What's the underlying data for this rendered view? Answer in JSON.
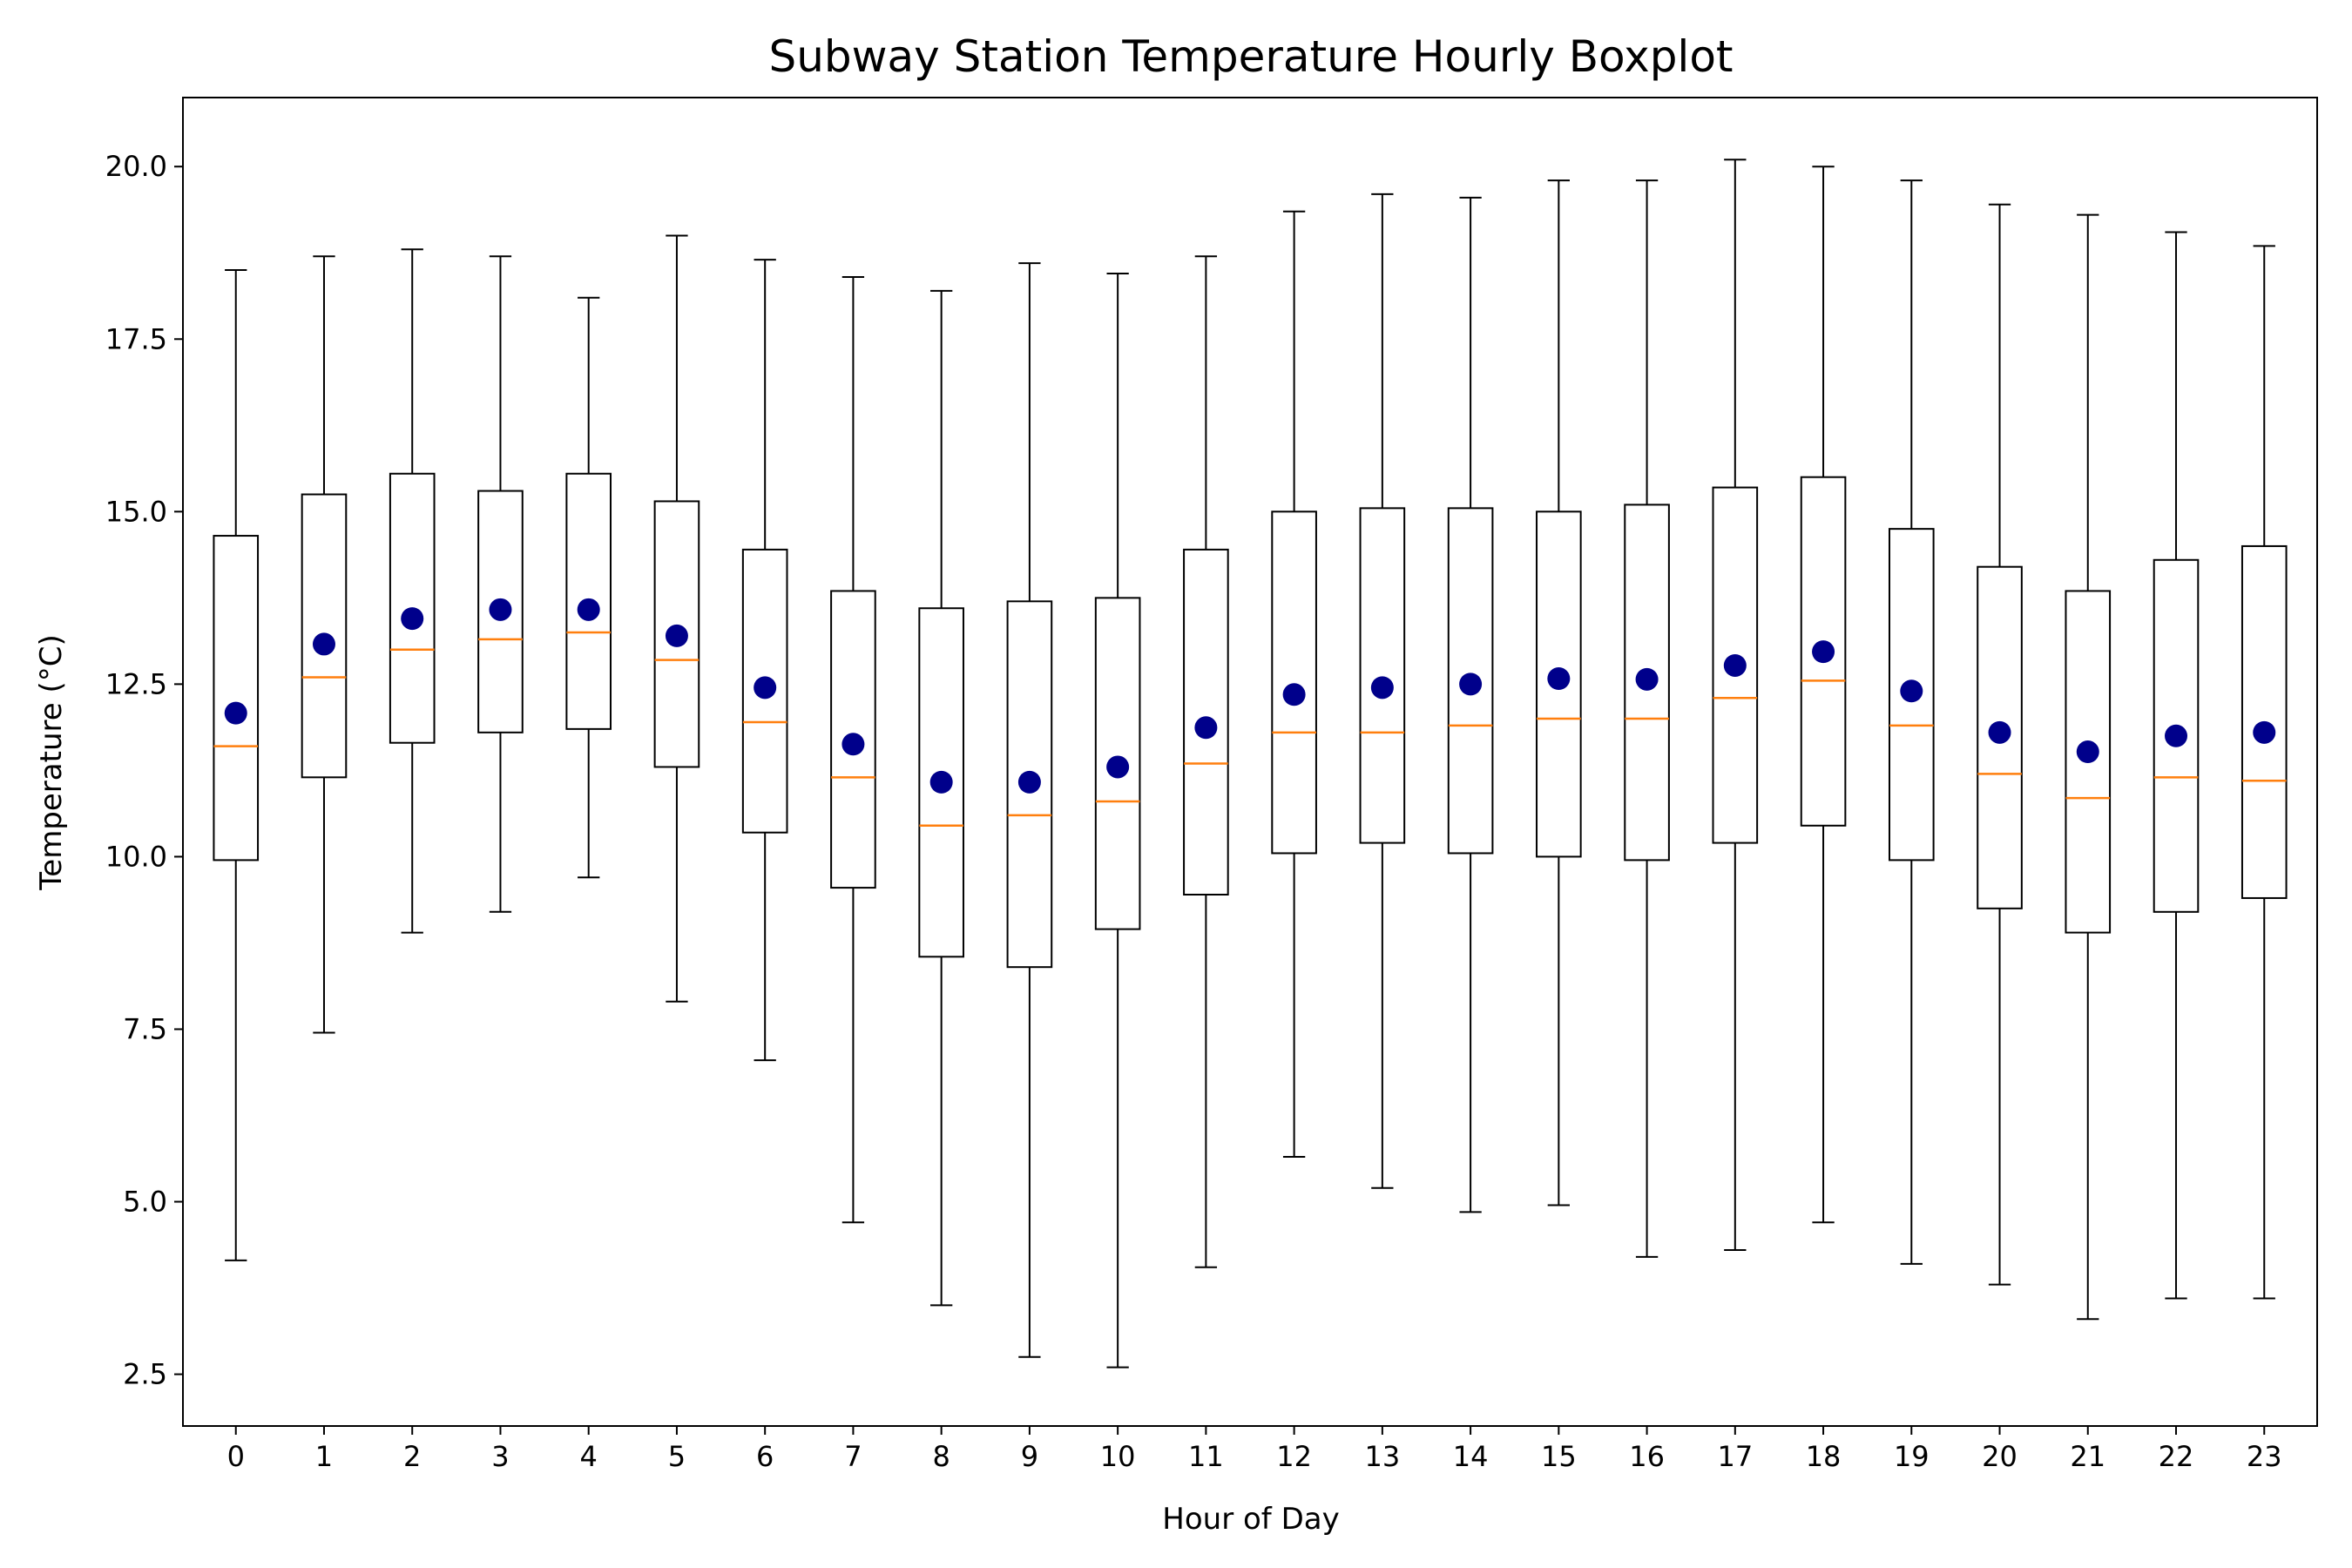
{
  "chart_data": {
    "type": "boxplot",
    "title": "Subway Station Temperature Hourly Boxplot",
    "xlabel": "Hour of Day",
    "ylabel": "Temperature (°C)",
    "ylim": [
      1.75,
      21.0
    ],
    "yticks": [
      2.5,
      5.0,
      7.5,
      10.0,
      12.5,
      15.0,
      17.5,
      20.0
    ],
    "ytick_labels": [
      "2.5",
      "5.0",
      "7.5",
      "10.0",
      "12.5",
      "15.0",
      "17.5",
      "20.0"
    ],
    "grid": false,
    "colors": {
      "box": "#000000",
      "median": "#ff7f0e",
      "mean": "#00008b"
    },
    "categories": [
      "0",
      "1",
      "2",
      "3",
      "4",
      "5",
      "6",
      "7",
      "8",
      "9",
      "10",
      "11",
      "12",
      "13",
      "14",
      "15",
      "16",
      "17",
      "18",
      "19",
      "20",
      "21",
      "22",
      "23"
    ],
    "boxes": [
      {
        "whislo": 4.15,
        "q1": 9.95,
        "med": 11.6,
        "q3": 14.65,
        "whishi": 18.5,
        "mean": 12.08
      },
      {
        "whislo": 7.45,
        "q1": 11.15,
        "med": 12.6,
        "q3": 15.25,
        "whishi": 18.7,
        "mean": 13.08
      },
      {
        "whislo": 8.9,
        "q1": 11.65,
        "med": 13.0,
        "q3": 15.55,
        "whishi": 18.8,
        "mean": 13.45
      },
      {
        "whislo": 9.2,
        "q1": 11.8,
        "med": 13.15,
        "q3": 15.3,
        "whishi": 18.7,
        "mean": 13.58
      },
      {
        "whislo": 9.7,
        "q1": 11.85,
        "med": 13.25,
        "q3": 15.55,
        "whishi": 18.1,
        "mean": 13.58
      },
      {
        "whislo": 7.9,
        "q1": 11.3,
        "med": 12.85,
        "q3": 15.15,
        "whishi": 19.0,
        "mean": 13.2
      },
      {
        "whislo": 7.05,
        "q1": 10.35,
        "med": 11.95,
        "q3": 14.45,
        "whishi": 18.65,
        "mean": 12.45
      },
      {
        "whislo": 4.7,
        "q1": 9.55,
        "med": 11.15,
        "q3": 13.85,
        "whishi": 18.4,
        "mean": 11.63
      },
      {
        "whislo": 3.5,
        "q1": 8.55,
        "med": 10.45,
        "q3": 13.6,
        "whishi": 18.2,
        "mean": 11.08
      },
      {
        "whislo": 2.75,
        "q1": 8.4,
        "med": 10.6,
        "q3": 13.7,
        "whishi": 18.6,
        "mean": 11.08
      },
      {
        "whislo": 2.6,
        "q1": 8.95,
        "med": 10.8,
        "q3": 13.75,
        "whishi": 18.45,
        "mean": 11.3
      },
      {
        "whislo": 4.05,
        "q1": 9.45,
        "med": 11.35,
        "q3": 14.45,
        "whishi": 18.7,
        "mean": 11.87
      },
      {
        "whislo": 5.65,
        "q1": 10.05,
        "med": 11.8,
        "q3": 15.0,
        "whishi": 19.35,
        "mean": 12.35
      },
      {
        "whislo": 5.2,
        "q1": 10.2,
        "med": 11.8,
        "q3": 15.05,
        "whishi": 19.6,
        "mean": 12.45
      },
      {
        "whislo": 4.85,
        "q1": 10.05,
        "med": 11.9,
        "q3": 15.05,
        "whishi": 19.55,
        "mean": 12.5
      },
      {
        "whislo": 4.95,
        "q1": 10.0,
        "med": 12.0,
        "q3": 15.0,
        "whishi": 19.8,
        "mean": 12.58
      },
      {
        "whislo": 4.2,
        "q1": 9.95,
        "med": 12.0,
        "q3": 15.1,
        "whishi": 19.8,
        "mean": 12.57
      },
      {
        "whislo": 4.3,
        "q1": 10.2,
        "med": 12.3,
        "q3": 15.35,
        "whishi": 20.1,
        "mean": 12.77
      },
      {
        "whislo": 4.7,
        "q1": 10.45,
        "med": 12.55,
        "q3": 15.5,
        "whishi": 20.0,
        "mean": 12.97
      },
      {
        "whislo": 4.1,
        "q1": 9.95,
        "med": 11.9,
        "q3": 14.75,
        "whishi": 19.8,
        "mean": 12.4
      },
      {
        "whislo": 3.8,
        "q1": 9.25,
        "med": 11.2,
        "q3": 14.2,
        "whishi": 19.45,
        "mean": 11.8
      },
      {
        "whislo": 3.3,
        "q1": 8.9,
        "med": 10.85,
        "q3": 13.85,
        "whishi": 19.3,
        "mean": 11.52
      },
      {
        "whislo": 3.6,
        "q1": 9.2,
        "med": 11.15,
        "q3": 14.3,
        "whishi": 19.05,
        "mean": 11.75
      },
      {
        "whislo": 3.6,
        "q1": 9.4,
        "med": 11.1,
        "q3": 14.5,
        "whishi": 18.85,
        "mean": 11.8
      }
    ]
  }
}
